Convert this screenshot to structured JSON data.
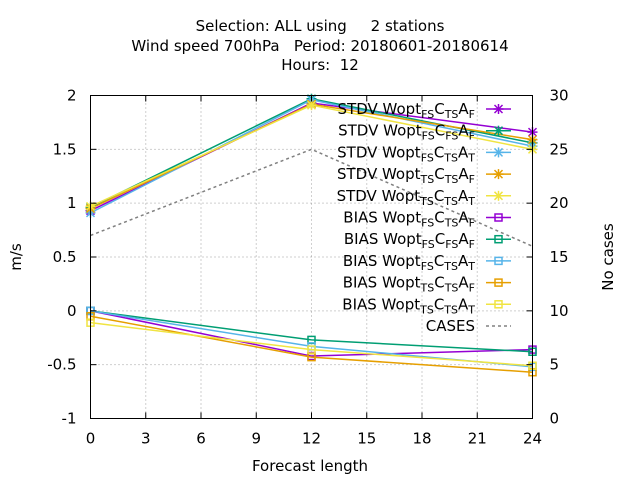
{
  "title": {
    "line1": "Selection: ALL using     2 stations",
    "line2": "Wind speed 700hPa   Period: 20180601-20180614",
    "line3": "Hours:  12"
  },
  "chart_data": {
    "type": "line",
    "xlabel": "Forecast length",
    "ylabel": "m/s",
    "y2label": "No cases",
    "xlim": [
      0,
      24
    ],
    "ylim": [
      -1,
      2
    ],
    "y2lim": [
      0,
      30
    ],
    "x_ticks": [
      0,
      3,
      6,
      9,
      12,
      15,
      18,
      21,
      24
    ],
    "y_ticks": [
      -1,
      -0.5,
      0,
      0.5,
      1,
      1.5,
      2
    ],
    "y_tick_labels": [
      "-1",
      "-0.5",
      "0",
      "0.5",
      "1",
      "1.5",
      "2"
    ],
    "y2_ticks": [
      0,
      5,
      10,
      15,
      20,
      25,
      30
    ],
    "grid": true,
    "legend_position": "top-right",
    "x": [
      0,
      12,
      24
    ],
    "series": [
      {
        "name": "STDV Wopt_FS C_TS A_F",
        "stat": "STDV",
        "sub": [
          "FS",
          "TS",
          "F"
        ],
        "color": "#9400d3",
        "marker": "x-star",
        "values": [
          0.93,
          1.93,
          1.66
        ],
        "axis": "y1"
      },
      {
        "name": "STDV Wopt_FS C_FS A_F",
        "stat": "STDV",
        "sub": [
          "FS",
          "FS",
          "F"
        ],
        "color": "#009e73",
        "marker": "x-star",
        "values": [
          0.96,
          1.97,
          1.56
        ],
        "axis": "y1"
      },
      {
        "name": "STDV Wopt_FS C_TS A_T",
        "stat": "STDV",
        "sub": [
          "FS",
          "TS",
          "T"
        ],
        "color": "#56b4e9",
        "marker": "x-star",
        "values": [
          0.91,
          1.96,
          1.53
        ],
        "axis": "y1"
      },
      {
        "name": "STDV Wopt_TS C_TS A_F",
        "stat": "STDV",
        "sub": [
          "TS",
          "TS",
          "F"
        ],
        "color": "#e69f00",
        "marker": "x-star",
        "values": [
          0.95,
          1.92,
          1.59
        ],
        "axis": "y1"
      },
      {
        "name": "STDV Wopt_TS C_TS A_T",
        "stat": "STDV",
        "sub": [
          "TS",
          "TS",
          "T"
        ],
        "color": "#f0e442",
        "marker": "x-star",
        "values": [
          0.97,
          1.91,
          1.5
        ],
        "axis": "y1"
      },
      {
        "name": "BIAS Wopt_FS C_TS A_F",
        "stat": "BIAS",
        "sub": [
          "FS",
          "TS",
          "F"
        ],
        "color": "#9400d3",
        "marker": "square",
        "values": [
          0.0,
          -0.42,
          -0.36
        ],
        "axis": "y1"
      },
      {
        "name": "BIAS Wopt_FS C_FS A_F",
        "stat": "BIAS",
        "sub": [
          "FS",
          "FS",
          "F"
        ],
        "color": "#009e73",
        "marker": "square",
        "values": [
          0.0,
          -0.27,
          -0.38
        ],
        "axis": "y1"
      },
      {
        "name": "BIAS Wopt_FS C_TS A_T",
        "stat": "BIAS",
        "sub": [
          "FS",
          "TS",
          "T"
        ],
        "color": "#56b4e9",
        "marker": "square",
        "values": [
          0.0,
          -0.33,
          -0.52
        ],
        "axis": "y1"
      },
      {
        "name": "BIAS Wopt_TS C_TS A_F",
        "stat": "BIAS",
        "sub": [
          "TS",
          "TS",
          "F"
        ],
        "color": "#e69f00",
        "marker": "square",
        "values": [
          -0.05,
          -0.43,
          -0.57
        ],
        "axis": "y1"
      },
      {
        "name": "BIAS Wopt_TS C_TS A_T",
        "stat": "BIAS",
        "sub": [
          "TS",
          "TS",
          "T"
        ],
        "color": "#f0e442",
        "marker": "square",
        "values": [
          -0.11,
          -0.36,
          -0.51
        ],
        "axis": "y1"
      },
      {
        "name": "CASES",
        "stat": "CASES",
        "sub": [],
        "color": "#808080",
        "marker": "none",
        "dashed": true,
        "values": [
          17,
          25,
          16
        ],
        "axis": "y2"
      }
    ]
  }
}
